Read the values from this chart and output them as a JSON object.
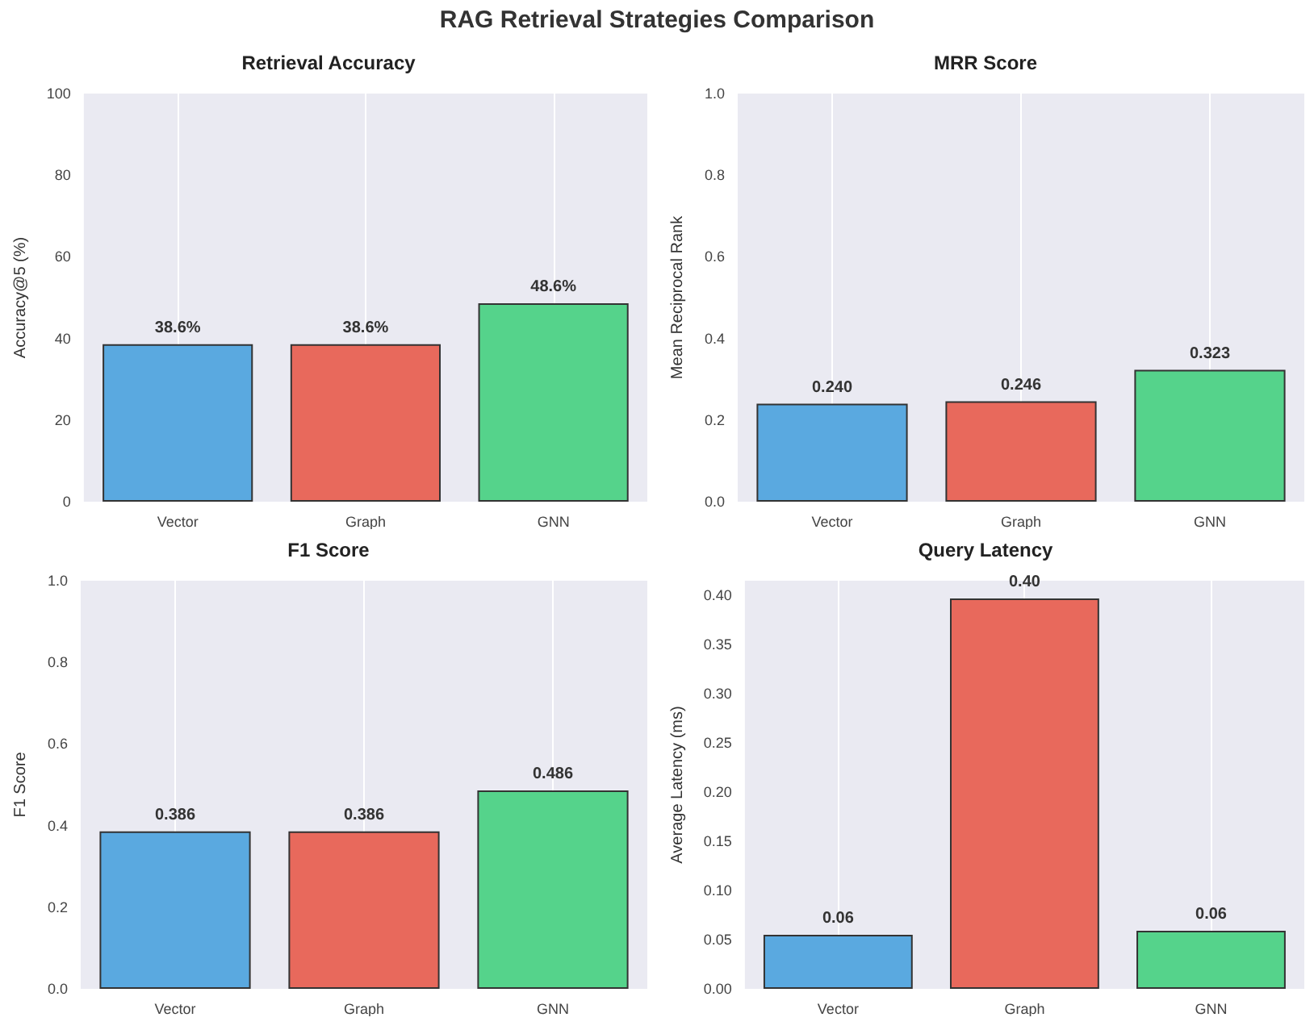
{
  "chart_data": [
    {
      "type": "bar",
      "title": "Retrieval Accuracy",
      "annotations": [
        "RAG Retrieval Strategies Comparison"
      ],
      "ylabel": "Accuracy@5 (%)",
      "categories": [
        "Vector",
        "Graph",
        "GNN"
      ],
      "values": [
        38.6,
        38.6,
        48.6
      ],
      "value_labels": [
        "38.6%",
        "38.6%",
        "48.6%"
      ],
      "colors": [
        "#5aa9e0",
        "#e8695c",
        "#55d38b"
      ],
      "ylim": [
        0,
        100
      ],
      "yticks": [
        0,
        20,
        40,
        60,
        80,
        100
      ],
      "grid": "x"
    },
    {
      "type": "bar",
      "title": "MRR Score",
      "ylabel": "Mean Reciprocal Rank",
      "categories": [
        "Vector",
        "Graph",
        "GNN"
      ],
      "values": [
        0.24,
        0.246,
        0.323
      ],
      "value_labels": [
        "0.240",
        "0.246",
        "0.323"
      ],
      "colors": [
        "#5aa9e0",
        "#e8695c",
        "#55d38b"
      ],
      "ylim": [
        0,
        1
      ],
      "yticks": [
        {
          "value": 0,
          "label": "0.0"
        },
        {
          "value": 0.2,
          "label": "0.2"
        },
        {
          "value": 0.4,
          "label": "0.4"
        },
        {
          "value": 0.6,
          "label": "0.6"
        },
        {
          "value": 0.8,
          "label": "0.8"
        },
        {
          "value": 1,
          "label": "1.0"
        }
      ],
      "grid": "x"
    },
    {
      "type": "bar",
      "title": "F1 Score",
      "ylabel": "F1 Score",
      "categories": [
        "Vector",
        "Graph",
        "GNN"
      ],
      "values": [
        0.386,
        0.386,
        0.486
      ],
      "data_labels": true,
      "colors": [
        "#5aa9e0",
        "#e8695c",
        "#55d38b"
      ],
      "ylim": [
        0,
        1
      ],
      "yticks": [
        {
          "value": 0,
          "label": "0.0"
        },
        {
          "value": 0.2,
          "label": "0.2"
        },
        {
          "value": 0.4,
          "label": "0.4"
        },
        {
          "value": 0.6,
          "label": "0.6"
        },
        {
          "value": 0.8,
          "label": "0.8"
        },
        {
          "value": 1,
          "label": "1.0"
        }
      ],
      "grid": "x"
    },
    {
      "type": "bar",
      "title": "Query Latency",
      "ylabel": "Average Latency (ms)",
      "categories": [
        "Vector",
        "Graph",
        "GNN"
      ],
      "values": [
        0.055,
        0.397,
        0.059
      ],
      "value_labels": [
        "0.06",
        "0.40",
        "0.06"
      ],
      "colors": [
        "#5aa9e0",
        "#e8695c",
        "#55d38b"
      ],
      "ylim": [
        0,
        0.415
      ],
      "yticks": [
        {
          "value": 0,
          "label": "0.00"
        },
        {
          "value": 0.05,
          "label": "0.05"
        },
        {
          "value": 0.1,
          "label": "0.10"
        },
        {
          "value": 0.15,
          "label": "0.15"
        },
        {
          "value": 0.2,
          "label": "0.20"
        },
        {
          "value": 0.25,
          "label": "0.25"
        },
        {
          "value": 0.3,
          "label": "0.30"
        },
        {
          "value": 0.35,
          "label": "0.35"
        },
        {
          "value": 0.4,
          "label": "0.40"
        }
      ],
      "grid": "x"
    }
  ]
}
